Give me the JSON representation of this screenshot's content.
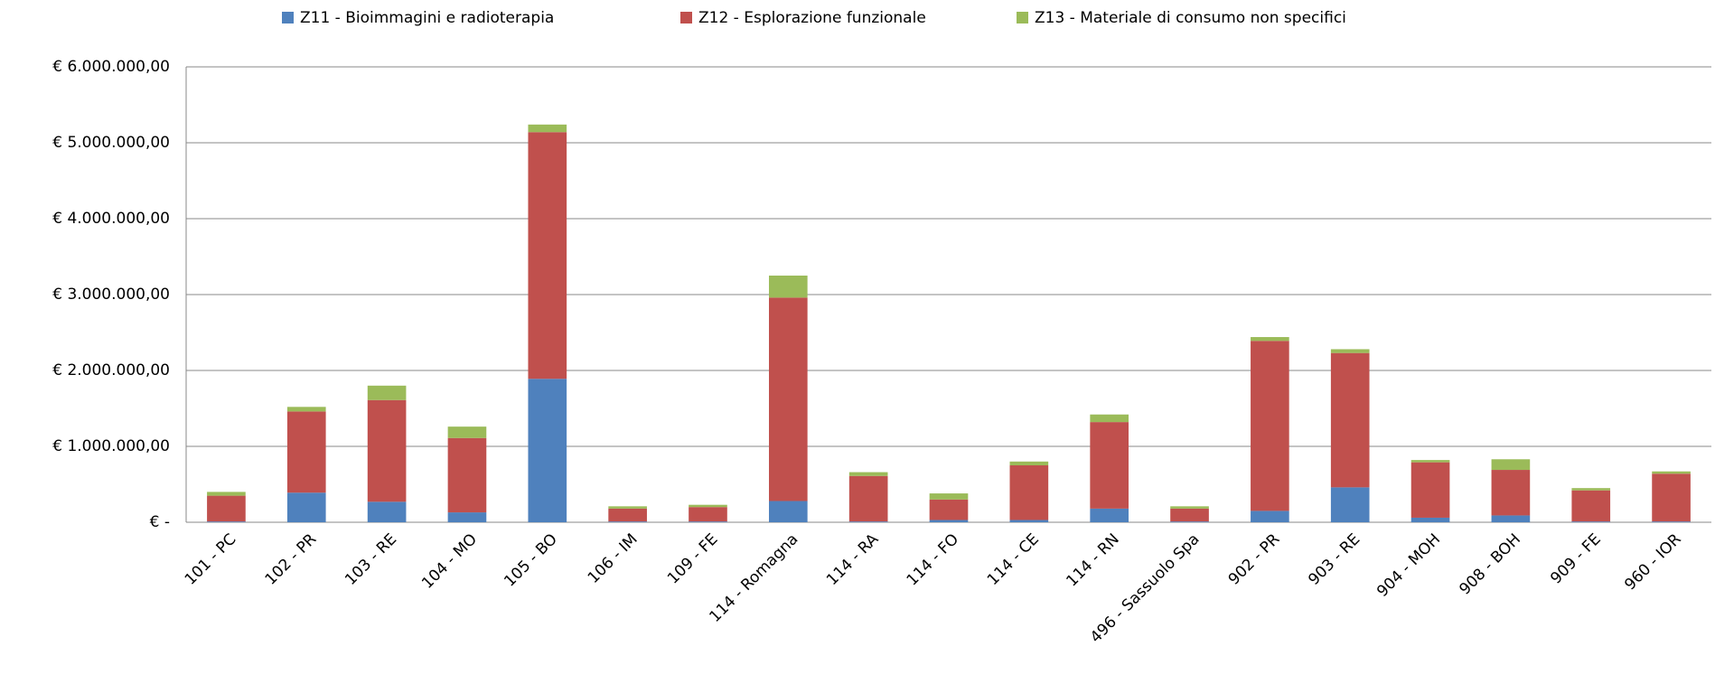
{
  "chart_data": {
    "type": "stacked_bar",
    "categories": [
      "101 - PC",
      "102 - PR",
      "103 - RE",
      "104 - MO",
      "105 - BO",
      "106 - IM",
      "109 - FE",
      "114 - Romagna",
      "114 - RA",
      "114 - FO",
      "114 - CE",
      "114 - RN",
      "496 - Sassuolo Spa",
      "902 - PR",
      "903 - RE",
      "904 - MOH",
      "908 - BOH",
      "909 - FE",
      "960 - IOR"
    ],
    "series": [
      {
        "name": "Z11 - Bioimmagini e radioterapia",
        "color": "#4f81bd",
        "values": [
          10000,
          390000,
          270000,
          130000,
          1890000,
          10000,
          10000,
          280000,
          10000,
          30000,
          30000,
          180000,
          10000,
          150000,
          460000,
          60000,
          90000,
          10000,
          10000
        ]
      },
      {
        "name": "Z12 - Esplorazione funzionale",
        "color": "#c0504d",
        "values": [
          340000,
          1070000,
          1340000,
          980000,
          3250000,
          170000,
          190000,
          2680000,
          600000,
          270000,
          720000,
          1140000,
          170000,
          2240000,
          1770000,
          730000,
          600000,
          410000,
          630000
        ]
      },
      {
        "name": "Z13 - Materiale di consumo non specifici",
        "color": "#9bbb59",
        "values": [
          50000,
          60000,
          190000,
          150000,
          100000,
          30000,
          30000,
          290000,
          50000,
          80000,
          50000,
          100000,
          30000,
          50000,
          50000,
          30000,
          140000,
          30000,
          30000
        ]
      }
    ],
    "ylim": [
      0,
      6000000
    ],
    "yticks": [
      {
        "value": 0,
        "label": "€ -"
      },
      {
        "value": 1000000,
        "label": "€ 1.000.000,00"
      },
      {
        "value": 2000000,
        "label": "€ 2.000.000,00"
      },
      {
        "value": 3000000,
        "label": "€ 3.000.000,00"
      },
      {
        "value": 4000000,
        "label": "€ 4.000.000,00"
      },
      {
        "value": 5000000,
        "label": "€ 5.000.000,00"
      },
      {
        "value": 6000000,
        "label": "€ 6.000.000,00"
      }
    ],
    "grid": true,
    "legend": "top"
  }
}
